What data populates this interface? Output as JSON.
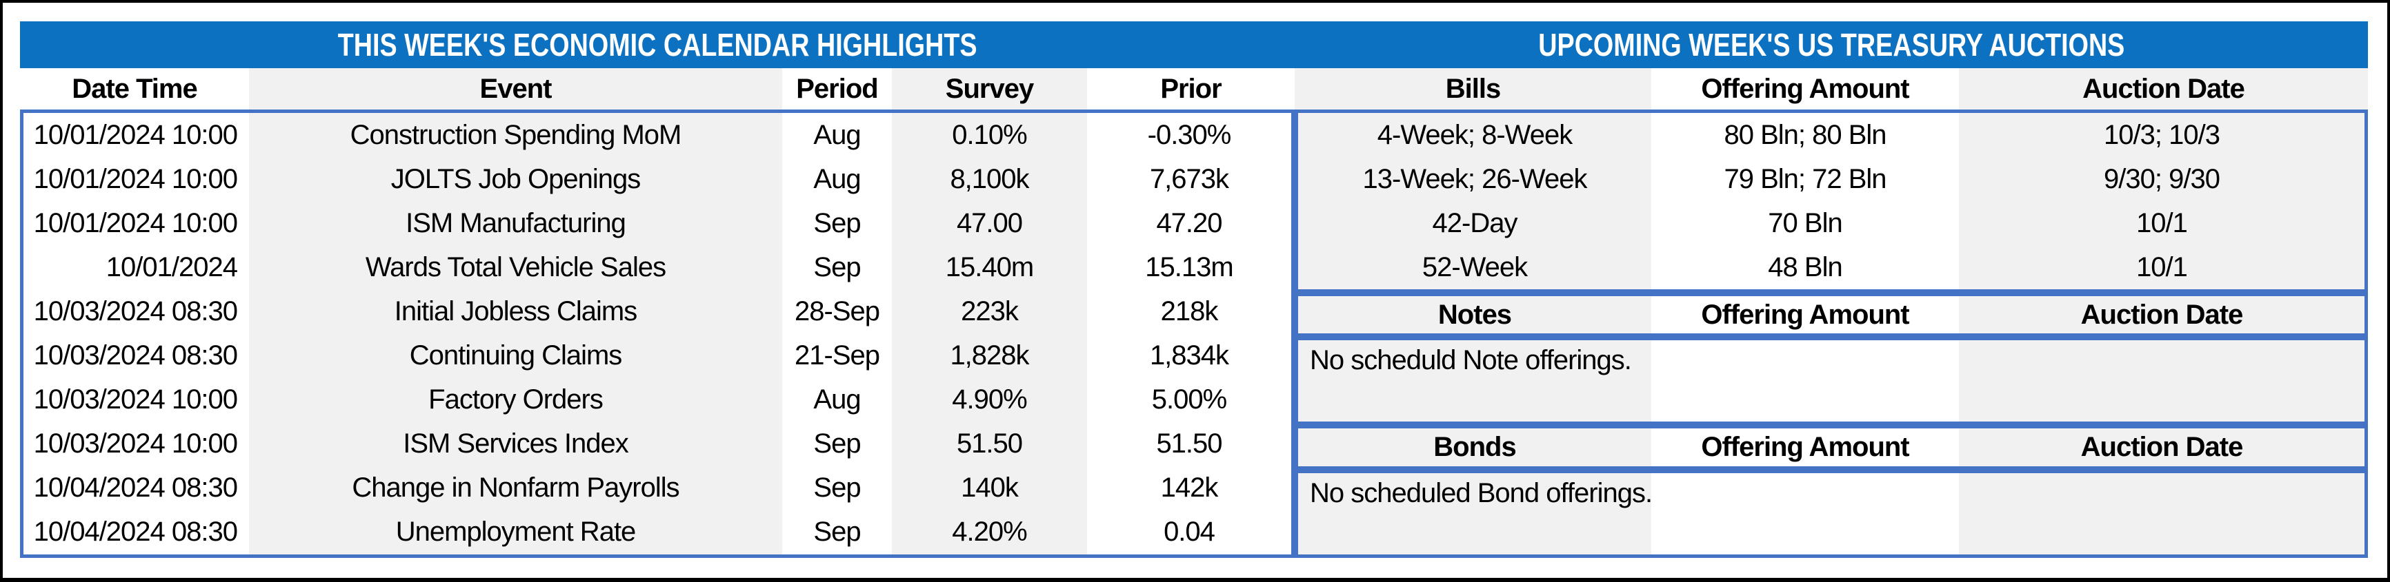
{
  "colors": {
    "title_bar_blue": "#0b71c0",
    "table_border_blue": "#4472c4",
    "stripe_gray": "#f1f1f1",
    "text_black": "#000000",
    "frame_black": "#000000",
    "background_white": "#ffffff"
  },
  "left_table": {
    "title": "THIS WEEK'S ECONOMIC CALENDAR HIGHLIGHTS",
    "columns": {
      "date_time": "Date Time",
      "event": "Event",
      "period": "Period",
      "survey": "Survey",
      "prior": "Prior"
    },
    "rows": [
      {
        "date_time": "10/01/2024 10:00",
        "event": "Construction Spending MoM",
        "period": "Aug",
        "survey": "0.10%",
        "prior": "-0.30%"
      },
      {
        "date_time": "10/01/2024 10:00",
        "event": "JOLTS Job Openings",
        "period": "Aug",
        "survey": "8,100k",
        "prior": "7,673k"
      },
      {
        "date_time": "10/01/2024 10:00",
        "event": "ISM Manufacturing",
        "period": "Sep",
        "survey": "47.00",
        "prior": "47.20"
      },
      {
        "date_time": "10/01/2024",
        "event": "Wards Total Vehicle Sales",
        "period": "Sep",
        "survey": "15.40m",
        "prior": "15.13m"
      },
      {
        "date_time": "10/03/2024 08:30",
        "event": "Initial Jobless Claims",
        "period": "28-Sep",
        "survey": "223k",
        "prior": "218k"
      },
      {
        "date_time": "10/03/2024 08:30",
        "event": "Continuing Claims",
        "period": "21-Sep",
        "survey": "1,828k",
        "prior": "1,834k"
      },
      {
        "date_time": "10/03/2024 10:00",
        "event": "Factory Orders",
        "period": "Aug",
        "survey": "4.90%",
        "prior": "5.00%"
      },
      {
        "date_time": "10/03/2024 10:00",
        "event": "ISM Services Index",
        "period": "Sep",
        "survey": "51.50",
        "prior": "51.50"
      },
      {
        "date_time": "10/04/2024 08:30",
        "event": "Change in Nonfarm Payrolls",
        "period": "Sep",
        "survey": "140k",
        "prior": "142k"
      },
      {
        "date_time": "10/04/2024 08:30",
        "event": "Unemployment Rate",
        "period": "Sep",
        "survey": "4.20%",
        "prior": "0.04"
      }
    ]
  },
  "right_table": {
    "title": "UPCOMING WEEK'S US TREASURY AUCTIONS",
    "bills": {
      "columns": {
        "type": "Bills",
        "offering_amount": "Offering Amount",
        "auction_date": "Auction Date"
      },
      "rows": [
        {
          "type": "4-Week; 8-Week",
          "offering_amount": "80 Bln; 80 Bln",
          "auction_date": "10/3; 10/3"
        },
        {
          "type": "13-Week; 26-Week",
          "offering_amount": "79 Bln; 72 Bln",
          "auction_date": "9/30; 9/30"
        },
        {
          "type": "42-Day",
          "offering_amount": "70 Bln",
          "auction_date": "10/1"
        },
        {
          "type": "52-Week",
          "offering_amount": "48 Bln",
          "auction_date": "10/1"
        }
      ]
    },
    "notes": {
      "columns": {
        "type": "Notes",
        "offering_amount": "Offering Amount",
        "auction_date": "Auction Date"
      },
      "note": "No scheduld Note offerings."
    },
    "bonds": {
      "columns": {
        "type": "Bonds",
        "offering_amount": "Offering Amount",
        "auction_date": "Auction Date"
      },
      "note": "No scheduled Bond offerings."
    }
  }
}
